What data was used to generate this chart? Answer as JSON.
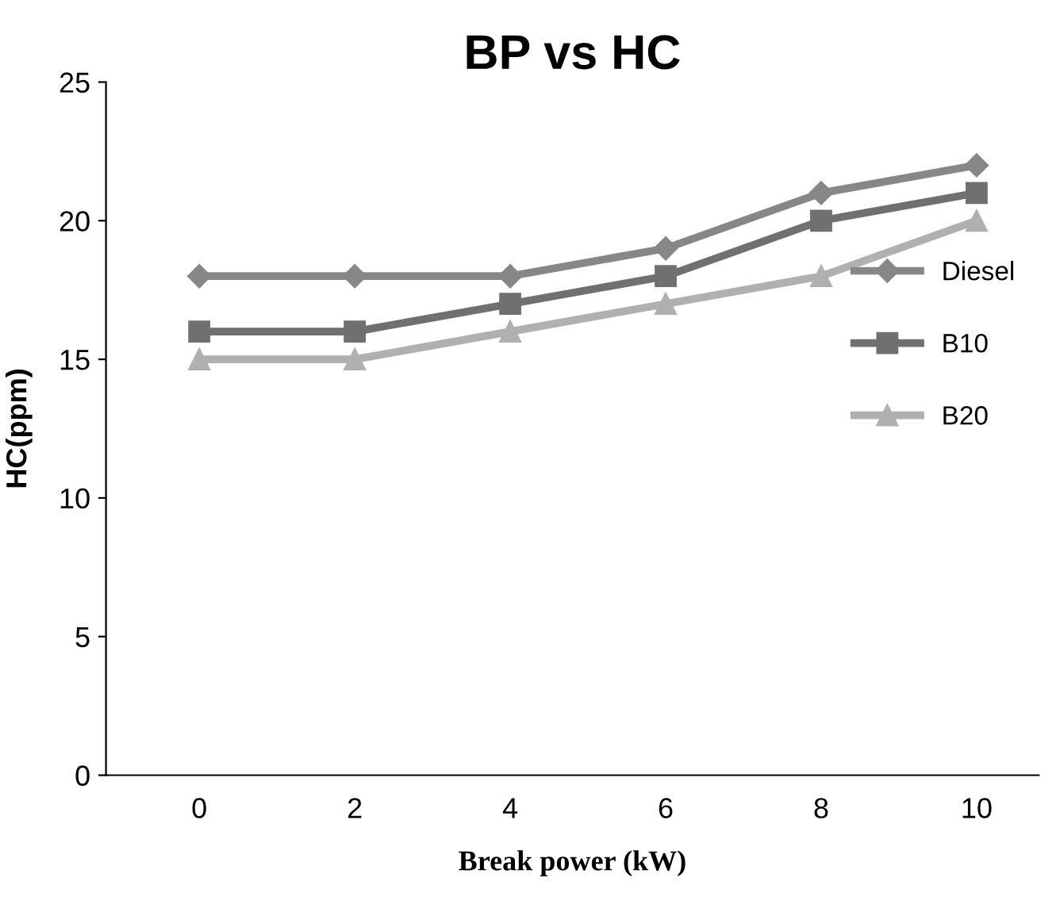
{
  "chart_data": {
    "type": "line",
    "title": "BP vs HC",
    "xlabel": "Break power (kW)",
    "ylabel": "HC(ppm)",
    "categories": [
      "0",
      "2",
      "4",
      "6",
      "8",
      "10"
    ],
    "series": [
      {
        "name": "Diesel",
        "color": "#878787",
        "marker": "diamond",
        "values": [
          18,
          18,
          18,
          19,
          21,
          22
        ]
      },
      {
        "name": "B10",
        "color": "#707070",
        "marker": "square",
        "values": [
          16,
          16,
          17,
          18,
          20,
          21
        ]
      },
      {
        "name": "B20",
        "color": "#b0b0b0",
        "marker": "triangle",
        "values": [
          15,
          15,
          16,
          17,
          18,
          20
        ]
      }
    ],
    "ylim": [
      0,
      25
    ],
    "yticks": [
      0,
      5,
      10,
      15,
      20,
      25
    ],
    "grid": false,
    "legend": "right",
    "line_style": "solid"
  }
}
